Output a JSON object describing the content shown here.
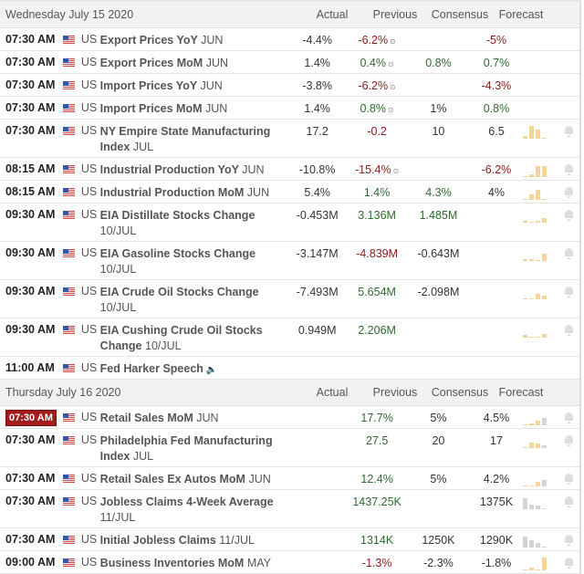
{
  "columns": {
    "actual": "Actual",
    "previous": "Previous",
    "consensus": "Consensus",
    "forecast": "Forecast"
  },
  "days": [
    {
      "date": "Wednesday July 15 2020",
      "events": [
        {
          "time": "07:30 AM",
          "country": "US",
          "name": "Export Prices YoY",
          "period": "JUN",
          "actual": "-4.4%",
          "previous": "-6.2%",
          "previous_color": "red",
          "revised": true,
          "consensus": "",
          "forecast": "-5%",
          "forecast_color": "red",
          "bars": []
        },
        {
          "time": "07:30 AM",
          "country": "US",
          "name": "Export Prices MoM",
          "period": "JUN",
          "actual": "1.4%",
          "previous": "0.4%",
          "previous_color": "grn",
          "revised": true,
          "consensus": "0.8%",
          "consensus_color": "grn",
          "forecast": "0.7%",
          "forecast_color": "grn",
          "bars": []
        },
        {
          "time": "07:30 AM",
          "country": "US",
          "name": "Import Prices YoY",
          "period": "JUN",
          "actual": "-3.8%",
          "previous": "-6.2%",
          "previous_color": "red",
          "revised": true,
          "consensus": "",
          "forecast": "-4.3%",
          "forecast_color": "red",
          "bars": []
        },
        {
          "time": "07:30 AM",
          "country": "US",
          "name": "Import Prices MoM",
          "period": "JUN",
          "actual": "1.4%",
          "previous": "0.8%",
          "previous_color": "grn",
          "revised": true,
          "consensus": "1%",
          "forecast": "0.8%",
          "forecast_color": "grn",
          "bars": []
        },
        {
          "time": "07:30 AM",
          "country": "US",
          "name": "NY Empire State Manufacturing Index",
          "period": "JUL",
          "actual": "17.2",
          "previous": "-0.2",
          "previous_color": "red",
          "consensus": "10",
          "forecast": "6.5",
          "bars": [
            3,
            14,
            10,
            1
          ],
          "alert": true
        },
        {
          "time": "08:15 AM",
          "country": "US",
          "name": "Industrial Production YoY",
          "period": "JUN",
          "actual": "-10.8%",
          "previous": "-15.4%",
          "previous_color": "red",
          "revised": true,
          "consensus": "",
          "forecast": "-6.2%",
          "forecast_color": "red",
          "bars": [
            1,
            3,
            12,
            12
          ],
          "alert": true
        },
        {
          "time": "08:15 AM",
          "country": "US",
          "name": "Industrial Production MoM",
          "period": "JUN",
          "actual": "5.4%",
          "previous": "1.4%",
          "previous_color": "grn",
          "consensus": "4.3%",
          "consensus_color": "grn",
          "forecast": "4%",
          "bars": [
            1,
            6,
            11,
            1
          ],
          "alert": true
        },
        {
          "time": "09:30 AM",
          "country": "US",
          "name": "EIA Distillate Stocks Change",
          "period": "10/JUL",
          "actual": "-0.453M",
          "previous": "3.136M",
          "previous_color": "grn",
          "consensus": "1.485M",
          "consensus_color": "grn",
          "forecast": "",
          "bars": [
            2,
            1,
            2,
            5
          ],
          "alert": true
        },
        {
          "time": "09:30 AM",
          "country": "US",
          "name": "EIA Gasoline Stocks Change",
          "period": "10/JUL",
          "actual": "-3.147M",
          "previous": "-4.839M",
          "previous_color": "red",
          "consensus": "-0.643M",
          "forecast": "",
          "bars": [
            2,
            2,
            1,
            8
          ],
          "alert": true
        },
        {
          "time": "09:30 AM",
          "country": "US",
          "name": "EIA Crude Oil Stocks Change",
          "period": "10/JUL",
          "actual": "-7.493M",
          "previous": "5.654M",
          "previous_color": "grn",
          "consensus": "-2.098M",
          "forecast": "",
          "bars": [
            1,
            1,
            6,
            4
          ],
          "alert": true
        },
        {
          "time": "09:30 AM",
          "country": "US",
          "name": "EIA Cushing Crude Oil Stocks Change",
          "period": "10/JUL",
          "actual": "0.949M",
          "previous": "2.206M",
          "previous_color": "grn",
          "consensus": "",
          "forecast": "",
          "bars": [
            3,
            1,
            1,
            4
          ],
          "alert": true
        },
        {
          "time": "11:00 AM",
          "country": "US",
          "name": "Fed Harker Speech",
          "period": "",
          "speech": true,
          "actual": "",
          "previous": "",
          "consensus": "",
          "forecast": "",
          "bars": []
        }
      ]
    },
    {
      "date": "Thursday July 16 2020",
      "events": [
        {
          "time": "07:30 AM",
          "highlighted": true,
          "country": "US",
          "name": "Retail Sales MoM",
          "period": "JUN",
          "actual": "",
          "previous": "17.7%",
          "previous_color": "grn",
          "consensus": "5%",
          "forecast": "4.5%",
          "bars": [
            1,
            2,
            5,
            8
          ],
          "alert": true
        },
        {
          "time": "07:30 AM",
          "country": "US",
          "name": "Philadelphia Fed Manufacturing Index",
          "period": "JUL",
          "actual": "",
          "previous": "27.5",
          "previous_color": "grn",
          "consensus": "20",
          "forecast": "17",
          "bars": [
            1,
            6,
            5,
            3
          ],
          "alert": true
        },
        {
          "time": "07:30 AM",
          "country": "US",
          "name": "Retail Sales Ex Autos MoM",
          "period": "JUN",
          "actual": "",
          "previous": "12.4%",
          "previous_color": "grn",
          "consensus": "5%",
          "forecast": "4.2%",
          "bars": [
            1,
            1,
            5,
            7
          ],
          "alert": true
        },
        {
          "time": "07:30 AM",
          "country": "US",
          "name": "Jobless Claims 4-Week Average",
          "period": "11/JUL",
          "actual": "",
          "previous": "1437.25K",
          "previous_color": "grn",
          "consensus": "",
          "forecast": "1375K",
          "bars": [
            12,
            5,
            4,
            1
          ],
          "bar_color": "gray",
          "alert": true
        },
        {
          "time": "07:30 AM",
          "country": "US",
          "name": "Initial Jobless Claims",
          "period": "11/JUL",
          "actual": "",
          "previous": "1314K",
          "previous_color": "grn",
          "consensus": "1250K",
          "forecast": "1290K",
          "bars": [
            12,
            8,
            5,
            1
          ],
          "bar_color": "gray",
          "alert": true
        },
        {
          "time": "09:00 AM",
          "country": "US",
          "name": "Business Inventories MoM",
          "period": "MAY",
          "actual": "",
          "previous": "-1.3%",
          "previous_color": "red",
          "consensus": "-2.3%",
          "forecast": "-1.8%",
          "bars": [
            1,
            3,
            1,
            14
          ],
          "alert": true
        }
      ]
    }
  ]
}
